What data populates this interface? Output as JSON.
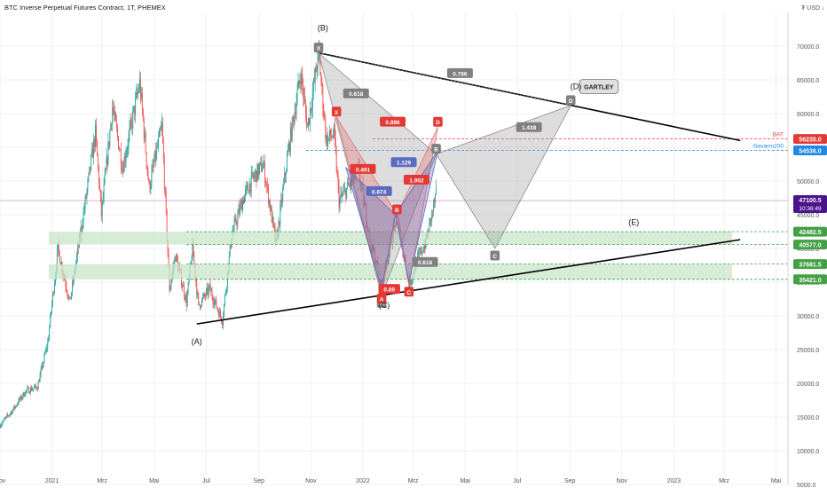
{
  "header": {
    "title": "BTC Inverse Perpetual Futures Contract, 1T, PHEMEX",
    "currency": "₮ USD ↓"
  },
  "colors": {
    "bg": "#ffffff",
    "grid": "#eef0f3",
    "up": "#26a69a",
    "down": "#ef5350",
    "zone": "#c8e6c9",
    "zone_line": "#43a047",
    "red_level": "#e53935",
    "blue_level": "#1e88e5",
    "gray_pattern": "#9e9e9e",
    "red_pattern": "#e57373",
    "blue_pattern": "#5c6bc0",
    "price_tag": "#4a148c"
  },
  "chart_data": {
    "type": "candlestick",
    "symbol": "BTC Inverse Perpetual Futures Contract",
    "interval": "1T",
    "exchange": "PHEMEX",
    "ylim": [
      5000,
      75000
    ],
    "x_start": "2020-11-01",
    "x_end": "2023-05-15",
    "y_ticks": [
      5000,
      10000,
      15000,
      20000,
      25000,
      30000,
      35000,
      40000,
      45000,
      50000,
      55000,
      60000,
      65000,
      70000
    ],
    "y_tick_labels": [
      "5000.0",
      "10000.0",
      "15000.0",
      "20000.0",
      "25000.0",
      "30000.0",
      "35000.0",
      "40000.0",
      "45000.0",
      "50000.0",
      "55000.0",
      "60000.0",
      "65000.0",
      "70000.0"
    ],
    "x_ticks": [
      {
        "date": "2020-11-01",
        "label": "Nov"
      },
      {
        "date": "2021-01-01",
        "label": "2021"
      },
      {
        "date": "2021-03-01",
        "label": "Mrz"
      },
      {
        "date": "2021-05-01",
        "label": "Mai"
      },
      {
        "date": "2021-07-01",
        "label": "Jul"
      },
      {
        "date": "2021-09-01",
        "label": "Sep"
      },
      {
        "date": "2021-11-01",
        "label": "Nov"
      },
      {
        "date": "2022-01-01",
        "label": "2022"
      },
      {
        "date": "2022-03-01",
        "label": "Mrz"
      },
      {
        "date": "2022-05-01",
        "label": "Mai"
      },
      {
        "date": "2022-07-01",
        "label": "Jul"
      },
      {
        "date": "2022-09-01",
        "label": "Sep"
      },
      {
        "date": "2022-11-01",
        "label": "Nov"
      },
      {
        "date": "2023-01-01",
        "label": "2023"
      },
      {
        "date": "2023-03-01",
        "label": "Mrz"
      },
      {
        "date": "2023-05-01",
        "label": "Mai"
      }
    ],
    "series": [
      {
        "values": [
          [
            "2020-11-01",
            13800
          ],
          [
            "2020-11-15",
            15900
          ],
          [
            "2020-12-01",
            18800
          ],
          [
            "2020-12-15",
            19500
          ],
          [
            "2020-12-27",
            26000
          ],
          [
            "2021-01-08",
            40000
          ],
          [
            "2021-01-22",
            32000
          ],
          [
            "2021-02-08",
            46000
          ],
          [
            "2021-02-21",
            57000
          ],
          [
            "2021-02-28",
            45000
          ],
          [
            "2021-03-13",
            61000
          ],
          [
            "2021-03-25",
            52000
          ],
          [
            "2021-04-14",
            64500
          ],
          [
            "2021-04-25",
            49000
          ],
          [
            "2021-05-10",
            58000
          ],
          [
            "2021-05-19",
            34000
          ],
          [
            "2021-05-26",
            39000
          ],
          [
            "2021-06-08",
            32000
          ],
          [
            "2021-06-15",
            40000
          ],
          [
            "2021-06-22",
            31500
          ],
          [
            "2021-07-05",
            34000
          ],
          [
            "2021-07-20",
            29300
          ],
          [
            "2021-07-31",
            42000
          ],
          [
            "2021-08-14",
            47500
          ],
          [
            "2021-08-23",
            50000
          ],
          [
            "2021-09-06",
            52500
          ],
          [
            "2021-09-21",
            40600
          ],
          [
            "2021-10-06",
            55000
          ],
          [
            "2021-10-20",
            66000
          ],
          [
            "2021-10-28",
            58000
          ],
          [
            "2021-11-10",
            69000
          ],
          [
            "2021-11-19",
            56000
          ],
          [
            "2021-11-28",
            57000
          ],
          [
            "2021-12-04",
            47000
          ],
          [
            "2021-12-27",
            51500
          ],
          [
            "2022-01-10",
            41000
          ],
          [
            "2022-01-23",
            34500
          ],
          [
            "2022-02-10",
            45000
          ],
          [
            "2022-02-24",
            34500
          ],
          [
            "2022-03-05",
            38000
          ],
          [
            "2022-03-16",
            41000
          ],
          [
            "2022-03-28",
            48000
          ]
        ]
      }
    ],
    "current_price": "47100.5",
    "countdown": "10:36:49",
    "price_levels": [
      {
        "label": "BAT",
        "value": "56235.0",
        "y": 56235,
        "style": "red"
      },
      {
        "label": "Navarro200",
        "value": "54536.0",
        "y": 54536,
        "style": "blue"
      },
      {
        "label": "",
        "value": "42482.5",
        "y": 42482.5,
        "style": "green"
      },
      {
        "label": "",
        "value": "40577.0",
        "y": 40577,
        "style": "green"
      },
      {
        "label": "",
        "value": "37681.5",
        "y": 37681.5,
        "style": "green"
      },
      {
        "label": "",
        "value": "35421.0",
        "y": 35421,
        "style": "green"
      }
    ],
    "zones": [
      [
        40577,
        42482.5
      ],
      [
        35421,
        37681.5
      ]
    ],
    "annotations": {
      "wave_labels": [
        "(A)",
        "(B)",
        "(C)",
        "(D)",
        "(E)"
      ],
      "pattern_name": "GARTLEY",
      "gray_points": [
        "X",
        "A",
        "B",
        "C",
        "D"
      ],
      "red_points": [
        "X",
        "A",
        "B",
        "C",
        "D"
      ],
      "ratios": {
        "gray_xb": "0.618",
        "gray_xd": "0.786",
        "gray_ac": "0.618",
        "gray_bd": "1.438",
        "red_xd": "0.886",
        "red_xb": "0.491",
        "red_bd": "1.902",
        "red_ac": "0.89",
        "blue_1": "1.129",
        "blue_2": "0.674"
      }
    }
  }
}
